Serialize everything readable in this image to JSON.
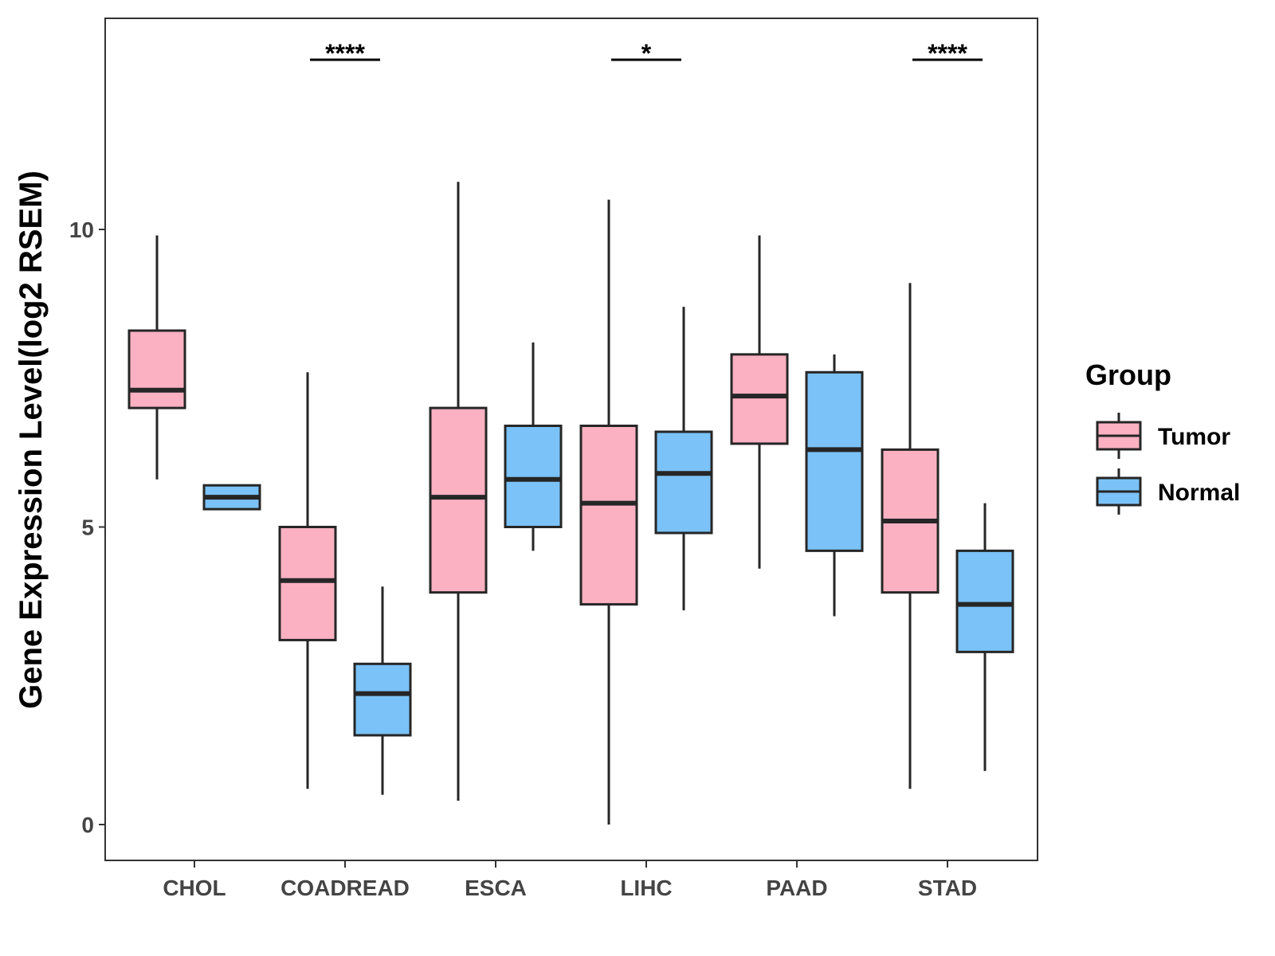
{
  "chart_data": {
    "type": "boxplot",
    "title": "",
    "xlabel": "",
    "ylabel": "Gene Expression Level(log2 RSEM)",
    "ylim": [
      -0.6,
      13.6
    ],
    "yticks": [
      0,
      5,
      10
    ],
    "grid": false,
    "legend_position": "right",
    "legend_title": "Group",
    "categories": [
      "CHOL",
      "COADREAD",
      "ESCA",
      "LIHC",
      "PAAD",
      "STAD"
    ],
    "series": [
      {
        "name": "Tumor",
        "color": "#FBB1C2",
        "boxes": [
          {
            "min": 5.8,
            "q1": 7.0,
            "median": 7.3,
            "q3": 8.3,
            "max": 9.9
          },
          {
            "min": 0.6,
            "q1": 3.1,
            "median": 4.1,
            "q3": 5.0,
            "max": 7.6
          },
          {
            "min": 0.4,
            "q1": 3.9,
            "median": 5.5,
            "q3": 7.0,
            "max": 10.8
          },
          {
            "min": 0.0,
            "q1": 3.7,
            "median": 5.4,
            "q3": 6.7,
            "max": 10.5
          },
          {
            "min": 4.3,
            "q1": 6.4,
            "median": 7.2,
            "q3": 7.9,
            "max": 9.9
          },
          {
            "min": 0.6,
            "q1": 3.9,
            "median": 5.1,
            "q3": 6.3,
            "max": 9.1
          }
        ]
      },
      {
        "name": "Normal",
        "color": "#7AC2F7",
        "boxes": [
          {
            "min": 5.3,
            "q1": 5.3,
            "median": 5.5,
            "q3": 5.7,
            "max": 5.7
          },
          {
            "min": 0.5,
            "q1": 1.5,
            "median": 2.2,
            "q3": 2.7,
            "max": 4.0
          },
          {
            "min": 4.6,
            "q1": 5.0,
            "median": 5.8,
            "q3": 6.7,
            "max": 8.1
          },
          {
            "min": 3.6,
            "q1": 4.9,
            "median": 5.9,
            "q3": 6.6,
            "max": 8.7
          },
          {
            "min": 3.5,
            "q1": 4.6,
            "median": 6.3,
            "q3": 7.6,
            "max": 7.9
          },
          {
            "min": 0.9,
            "q1": 2.9,
            "median": 3.7,
            "q3": 4.6,
            "max": 5.4
          }
        ]
      }
    ],
    "significance": [
      {
        "category": "COADREAD",
        "label": "****"
      },
      {
        "category": "LIHC",
        "label": "*"
      },
      {
        "category": "STAD",
        "label": "****"
      }
    ]
  }
}
